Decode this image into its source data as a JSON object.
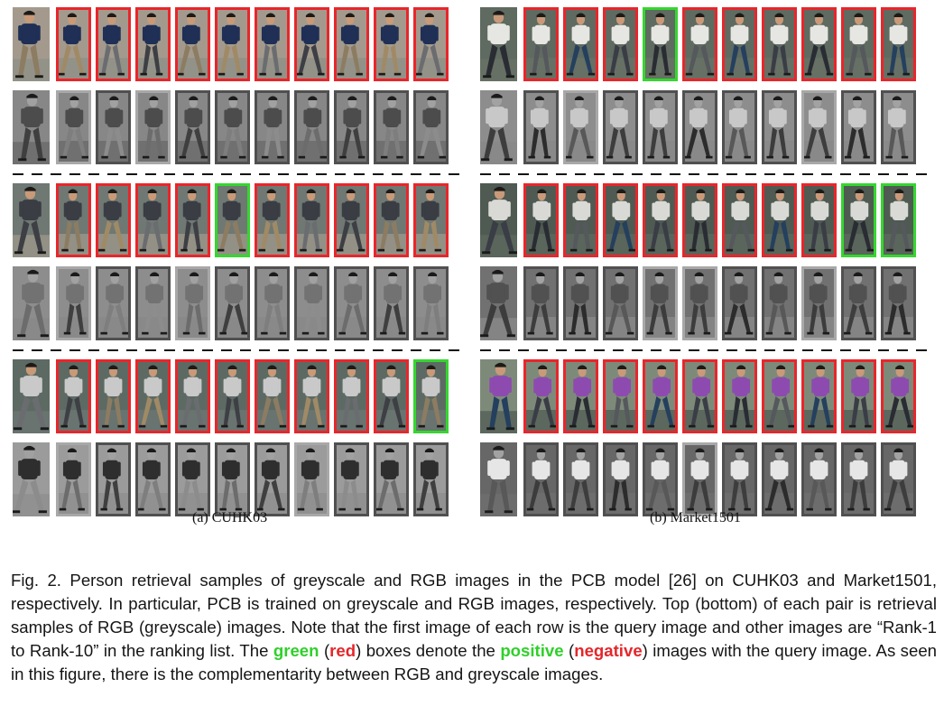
{
  "panels": [
    {
      "id": "a",
      "subcaption": "(a) CUHK03",
      "palette": {
        "bg": [
          "#6f7873",
          "#8b8f86",
          "#5d6a64",
          "#a39a8d",
          "#7d8a84"
        ],
        "shirt": [
          "#2c4f86",
          "#3a3d43",
          "#5476a8",
          "#c9c9c9",
          "#1f2f55"
        ],
        "pants": [
          "#8c7c62",
          "#3e3f44",
          "#6b6c70",
          "#a08a66"
        ],
        "skin": "#c89a78"
      },
      "groups": [
        {
          "rgb": [
            "query",
            "neg",
            "neg",
            "neg",
            "neg",
            "neg",
            "neg",
            "neg",
            "neg",
            "neg",
            "neg"
          ],
          "grey": [
            "query",
            "pos",
            "neg",
            "pos",
            "neg",
            "neg",
            "neg",
            "neg",
            "neg",
            "neg",
            "neg"
          ]
        },
        {
          "rgb": [
            "query",
            "neg",
            "neg",
            "neg",
            "neg",
            "pos",
            "neg",
            "neg",
            "neg",
            "neg",
            "neg"
          ],
          "grey": [
            "query",
            "pos",
            "neg",
            "neg",
            "pos",
            "neg",
            "neg",
            "neg",
            "neg",
            "neg",
            "neg"
          ]
        },
        {
          "rgb": [
            "query",
            "neg",
            "neg",
            "neg",
            "neg",
            "neg",
            "neg",
            "neg",
            "neg",
            "neg",
            "pos"
          ],
          "grey": [
            "query",
            "pos",
            "neg",
            "neg",
            "neg",
            "neg",
            "neg",
            "pos",
            "neg",
            "neg",
            "neg"
          ]
        }
      ]
    },
    {
      "id": "b",
      "subcaption": "(b) Market1501",
      "palette": {
        "bg": [
          "#6b7466",
          "#7e8a79",
          "#5f6a60",
          "#8a8f86",
          "#4f5a52"
        ],
        "shirt": [
          "#d9dad6",
          "#7b3d9e",
          "#8d4bb0",
          "#e6e6e2",
          "#c8c8c5"
        ],
        "pants": [
          "#3a3d46",
          "#24405e",
          "#55585c",
          "#2a2c33"
        ],
        "skin": "#c99a7a"
      },
      "groups": [
        {
          "rgb": [
            "query",
            "neg",
            "neg",
            "neg",
            "pos",
            "neg",
            "neg",
            "neg",
            "neg",
            "neg",
            "neg"
          ],
          "grey": [
            "query",
            "neg",
            "pos",
            "neg",
            "neg",
            "neg",
            "neg",
            "neg",
            "pos",
            "neg",
            "neg"
          ]
        },
        {
          "rgb": [
            "query",
            "neg",
            "neg",
            "neg",
            "neg",
            "neg",
            "neg",
            "neg",
            "neg",
            "pos",
            "pos"
          ],
          "grey": [
            "query",
            "neg",
            "neg",
            "neg",
            "pos",
            "pos",
            "neg",
            "neg",
            "pos",
            "neg",
            "neg"
          ]
        },
        {
          "rgb": [
            "query",
            "neg",
            "neg",
            "neg",
            "neg",
            "neg",
            "neg",
            "neg",
            "neg",
            "neg",
            "neg"
          ],
          "grey": [
            "query",
            "neg",
            "neg",
            "neg",
            "neg",
            "pos",
            "neg",
            "neg",
            "neg",
            "neg",
            "neg"
          ]
        }
      ]
    }
  ],
  "caption": {
    "part1": "Fig. 2.  Person retrieval samples of greyscale and RGB images in the PCB model [26] on CUHK03 and Market1501, respectively. In particular, PCB is trained on greyscale and RGB images, respectively. Top (bottom) of each pair is retrieval samples of RGB (greyscale) images. Note that the first image of each row is the query image and other images are “Rank-1 to Rank-10” in the ranking list. The ",
    "green_word": "green",
    "part2": " (",
    "red_word": "red",
    "part3": ") boxes denote the ",
    "positive_word": "positive",
    "part4": " (",
    "negative_word": "negative",
    "part5": ") images with the query image. As seen in this figure, there is the complementarity between RGB and greyscale images."
  },
  "colors": {
    "positive_border": "#35d62f",
    "negative_border": "#e8262b"
  }
}
